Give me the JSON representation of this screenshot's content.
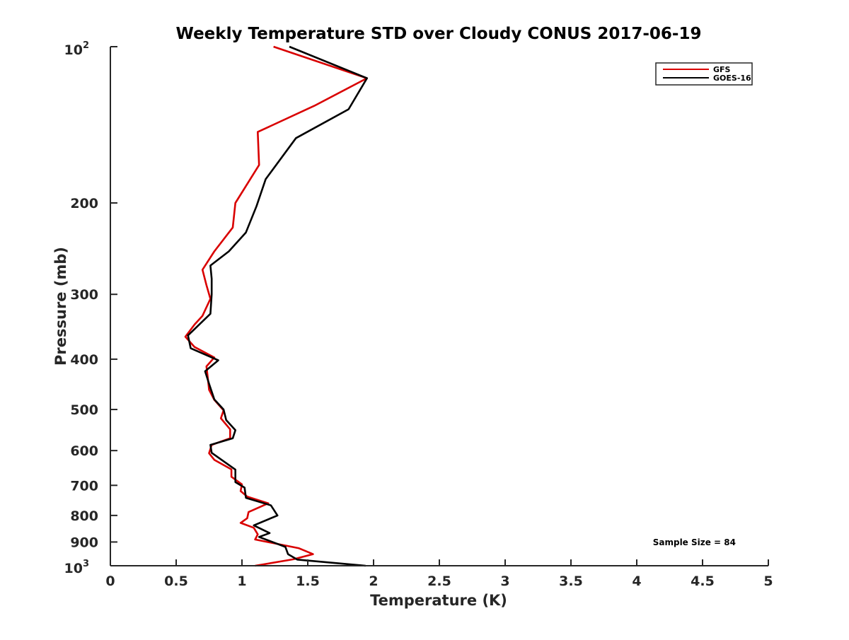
{
  "chart_data": {
    "type": "line",
    "title": "Weekly Temperature STD over Cloudy CONUS 2017-06-19",
    "xlabel": "Temperature (K)",
    "ylabel": "Pressure (mb)",
    "xlim": [
      0,
      5
    ],
    "ylim": [
      100,
      1000
    ],
    "y_scale": "log",
    "y_reversed": true,
    "grid": false,
    "legend_position": "top-right",
    "x_ticks": [
      0,
      0.5,
      1,
      1.5,
      2,
      2.5,
      3,
      3.5,
      4,
      4.5,
      5
    ],
    "x_tick_labels": [
      "0",
      "0.5",
      "1",
      "1.5",
      "2",
      "2.5",
      "3",
      "3.5",
      "4",
      "4.5",
      "5"
    ],
    "y_ticks": [
      200,
      300,
      400,
      500,
      600,
      700,
      800,
      900
    ],
    "y_tick_labels": [
      "200",
      "300",
      "400",
      "500",
      "600",
      "700",
      "800",
      "900"
    ],
    "y_tick_top": {
      "base": "10",
      "exp": "2",
      "value": 100
    },
    "y_tick_bottom": {
      "base": "10",
      "exp": "3",
      "value": 1000
    },
    "annotation": "Sample Size = 84",
    "series": [
      {
        "name": "GFS",
        "color": "#d90000",
        "points": [
          [
            1.24,
            100
          ],
          [
            1.95,
            115
          ],
          [
            1.55,
            130
          ],
          [
            1.12,
            146
          ],
          [
            1.13,
            169
          ],
          [
            0.95,
            200
          ],
          [
            0.93,
            223
          ],
          [
            0.79,
            248
          ],
          [
            0.7,
            269
          ],
          [
            0.73,
            288
          ],
          [
            0.76,
            306
          ],
          [
            0.7,
            330
          ],
          [
            0.64,
            343
          ],
          [
            0.57,
            362
          ],
          [
            0.64,
            379
          ],
          [
            0.79,
            397
          ],
          [
            0.73,
            413
          ],
          [
            0.74,
            433
          ],
          [
            0.75,
            458
          ],
          [
            0.79,
            479
          ],
          [
            0.86,
            502
          ],
          [
            0.84,
            520
          ],
          [
            0.91,
            546
          ],
          [
            0.91,
            568
          ],
          [
            0.77,
            585
          ],
          [
            0.75,
            607
          ],
          [
            0.79,
            625
          ],
          [
            0.92,
            652
          ],
          [
            0.92,
            674
          ],
          [
            1.0,
            697
          ],
          [
            0.99,
            718
          ],
          [
            1.04,
            736
          ],
          [
            1.2,
            758
          ],
          [
            1.05,
            788
          ],
          [
            1.04,
            810
          ],
          [
            0.99,
            827
          ],
          [
            1.09,
            845
          ],
          [
            1.12,
            870
          ],
          [
            1.1,
            890
          ],
          [
            1.43,
            925
          ],
          [
            1.54,
            950
          ],
          [
            1.39,
            972
          ],
          [
            1.1,
            1000
          ]
        ]
      },
      {
        "name": "GOES-16",
        "color": "#000000",
        "points": [
          [
            1.36,
            100
          ],
          [
            1.95,
            115
          ],
          [
            1.81,
            132
          ],
          [
            1.41,
            150
          ],
          [
            1.18,
            180
          ],
          [
            1.11,
            203
          ],
          [
            1.03,
            228
          ],
          [
            0.9,
            248
          ],
          [
            0.76,
            264
          ],
          [
            0.77,
            280
          ],
          [
            0.77,
            300
          ],
          [
            0.76,
            327
          ],
          [
            0.59,
            360
          ],
          [
            0.61,
            381
          ],
          [
            0.82,
            402
          ],
          [
            0.72,
            422
          ],
          [
            0.75,
            446
          ],
          [
            0.79,
            478
          ],
          [
            0.86,
            500
          ],
          [
            0.88,
            524
          ],
          [
            0.95,
            548
          ],
          [
            0.93,
            568
          ],
          [
            0.76,
            585
          ],
          [
            0.77,
            606
          ],
          [
            0.95,
            653
          ],
          [
            0.95,
            690
          ],
          [
            1.02,
            707
          ],
          [
            1.03,
            740
          ],
          [
            1.22,
            765
          ],
          [
            1.27,
            800
          ],
          [
            1.09,
            836
          ],
          [
            1.21,
            865
          ],
          [
            1.13,
            880
          ],
          [
            1.33,
            920
          ],
          [
            1.35,
            950
          ],
          [
            1.42,
            973
          ],
          [
            1.94,
            1000
          ]
        ]
      }
    ]
  }
}
